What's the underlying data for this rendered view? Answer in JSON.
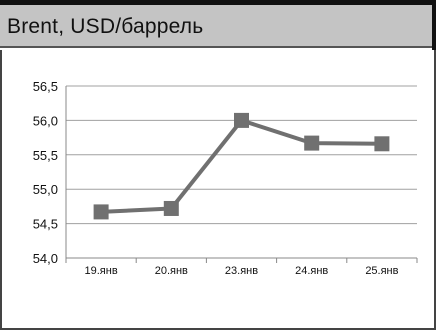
{
  "header": {
    "title": "Brent, USD/баррель"
  },
  "chart_data": {
    "type": "line",
    "title": "Brent, USD/баррель",
    "categories": [
      "19.янв",
      "20.янв",
      "23.янв",
      "24.янв",
      "25.янв"
    ],
    "values": [
      54.67,
      54.72,
      56.0,
      55.67,
      55.66
    ],
    "ylim": [
      54.0,
      56.5
    ],
    "yticks": [
      "54,0",
      "54,5",
      "55,0",
      "55,5",
      "56,0",
      "56,5"
    ],
    "grid": true,
    "marker": "square",
    "colors": {
      "line": "#707070",
      "marker": "#707070",
      "grid": "#a0a0a0",
      "axis": "#888888"
    }
  }
}
